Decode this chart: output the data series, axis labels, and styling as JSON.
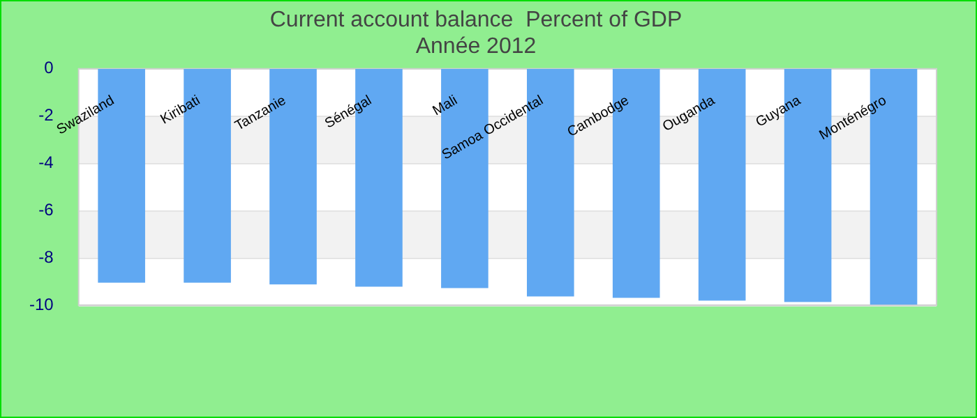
{
  "chart_data": {
    "type": "bar",
    "title": "Current account balance  Percent of GDP",
    "subtitle": "Année 2012",
    "categories": [
      "Swaziland",
      "Kiribati",
      "Tanzanie",
      "Sénégal",
      "Mali",
      "Samoa Occidental",
      "Cambodge",
      "Ouganda",
      "Guyana",
      "Monténégro"
    ],
    "values": [
      -9.05,
      -9.05,
      -9.12,
      -9.22,
      -9.28,
      -9.63,
      -9.69,
      -9.81,
      -9.87,
      -9.98
    ],
    "color": "#60a8f2",
    "ylim": [
      -10,
      0
    ],
    "yticks": [
      -10,
      -8,
      -6,
      -4,
      -2,
      0
    ],
    "grid": "y",
    "legend": false
  }
}
